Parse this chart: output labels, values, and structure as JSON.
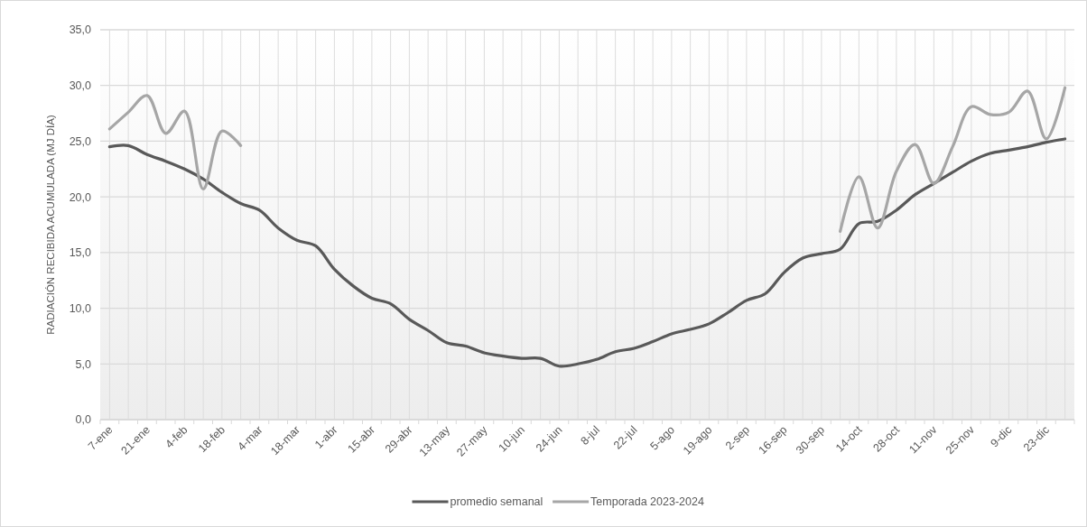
{
  "chart_data": {
    "type": "line",
    "ylabel": "RADIACIÓN RECIBIDA ACUMULADA (MJ DÍA)",
    "categories": [
      "7-ene",
      null,
      "21-ene",
      null,
      "4-feb",
      null,
      "18-feb",
      null,
      "4-mar",
      null,
      "18-mar",
      null,
      "1-abr",
      null,
      "15-abr",
      null,
      "29-abr",
      null,
      "13-may",
      null,
      "27-may",
      null,
      "10-jun",
      null,
      "24-jun",
      null,
      "8-jul",
      null,
      "22-jul",
      null,
      "5-ago",
      null,
      "19-ago",
      null,
      "2-sep",
      null,
      "16-sep",
      null,
      "30-sep",
      null,
      "14-oct",
      null,
      "28-oct",
      null,
      "11-nov",
      null,
      "25-nov",
      null,
      "9-dic",
      null,
      "23-dic",
      null
    ],
    "series": [
      {
        "name": "promedio semanal",
        "color": "#595959",
        "values": [
          24.5,
          24.6,
          23.8,
          23.2,
          22.5,
          21.6,
          20.4,
          19.4,
          18.8,
          17.2,
          16.1,
          15.6,
          13.5,
          12.0,
          10.9,
          10.4,
          9.0,
          8.0,
          6.9,
          6.6,
          6.0,
          5.7,
          5.5,
          5.5,
          4.8,
          5.0,
          5.4,
          6.1,
          6.4,
          7.0,
          7.7,
          8.1,
          8.6,
          9.6,
          10.7,
          11.3,
          13.2,
          14.5,
          14.9,
          15.3,
          17.6,
          17.8,
          18.8,
          20.2,
          21.2,
          22.2,
          23.2,
          23.9,
          24.2,
          24.5,
          24.9,
          25.2
        ]
      },
      {
        "name": "Temporada 2023-2024",
        "color": "#a6a6a6",
        "values": [
          26.1,
          27.6,
          29.1,
          25.7,
          27.7,
          20.7,
          25.9,
          24.6,
          null,
          null,
          null,
          null,
          null,
          null,
          null,
          null,
          null,
          null,
          null,
          null,
          null,
          null,
          null,
          null,
          null,
          null,
          null,
          null,
          null,
          null,
          null,
          null,
          null,
          null,
          null,
          null,
          null,
          null,
          null,
          16.9,
          21.8,
          17.2,
          22.3,
          24.7,
          21.2,
          24.5,
          28.1,
          27.4,
          27.6,
          29.5,
          25.2,
          29.8
        ]
      }
    ],
    "ylim": [
      0,
      35
    ],
    "yticks": [
      {
        "value": 0,
        "label": "0,0"
      },
      {
        "value": 5,
        "label": "5,0"
      },
      {
        "value": 10,
        "label": "10,0"
      },
      {
        "value": 15,
        "label": "15,0"
      },
      {
        "value": 20,
        "label": "20,0"
      },
      {
        "value": 25,
        "label": "25,0"
      },
      {
        "value": 30,
        "label": "30,0"
      },
      {
        "value": 35,
        "label": "35,0"
      }
    ],
    "grid": true,
    "legend": "bottom",
    "marker": "none",
    "line_style": "solid"
  }
}
